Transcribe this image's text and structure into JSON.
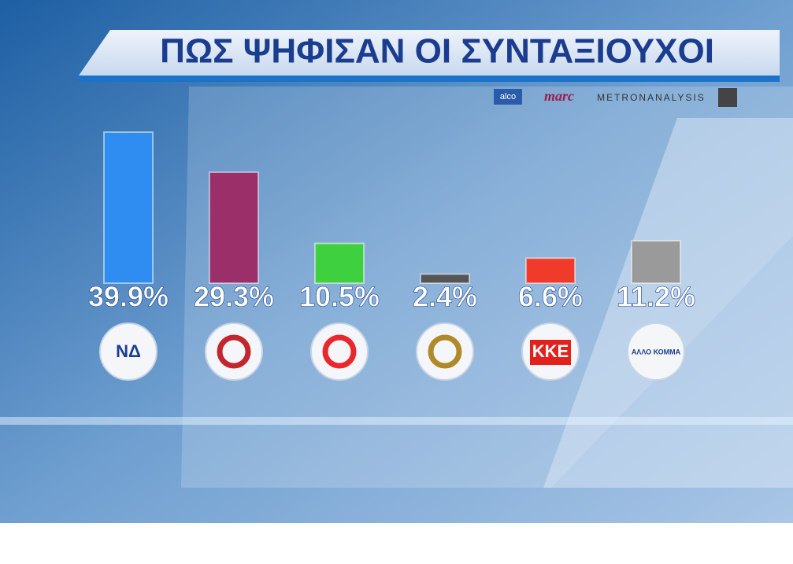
{
  "chart_data": {
    "type": "bar",
    "title": "ΠΩΣ ΨΗΦΙΣΑΝ ΟΙ ΣΥΝΤΑΞΙΟΥΧΟΙ",
    "sources": [
      "alco",
      "marc",
      "METRONANALYSIS"
    ],
    "categories": [
      "ΝΔ",
      null,
      null,
      null,
      "ΚΚΕ",
      "ΑΛΛΟ ΚΟΜΜΑ"
    ],
    "values": [
      39.9,
      29.3,
      10.5,
      2.4,
      6.6,
      11.2
    ],
    "value_labels": [
      "39.9%",
      "29.3%",
      "10.5%",
      "2.4%",
      "6.6%",
      "11.2%"
    ],
    "colors": [
      "#2f8cf0",
      "#9a2f6a",
      "#3ed03e",
      "#555555",
      "#f03a2a",
      "#9a9a9a"
    ]
  }
}
